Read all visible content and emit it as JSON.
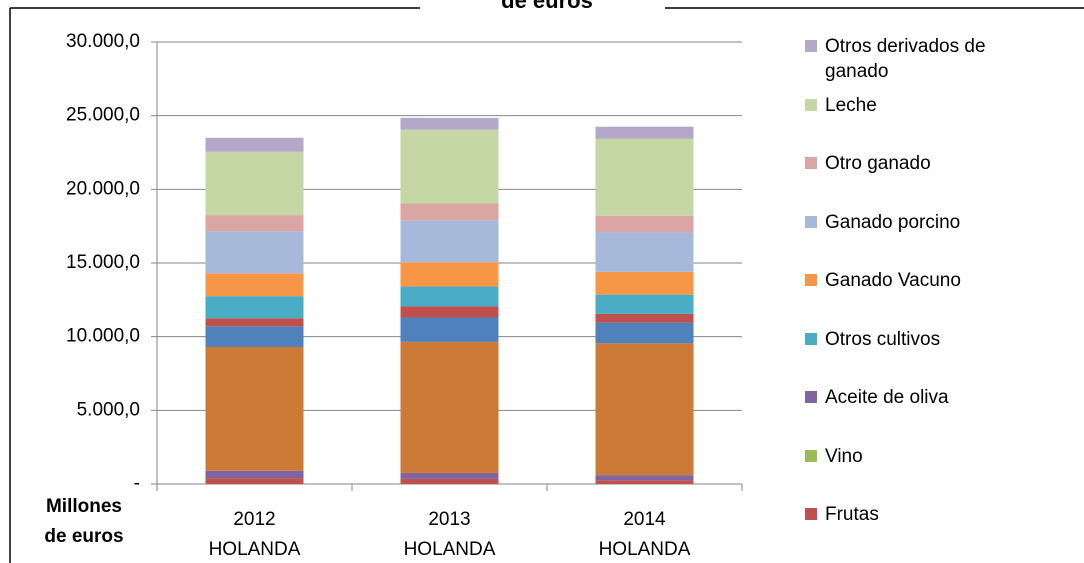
{
  "chart_data": {
    "type": "stacked_bar",
    "title": "de euros",
    "axis_label": [
      "Millones",
      "de euros"
    ],
    "categories": [
      [
        "2012",
        "HOLANDA"
      ],
      [
        "2013",
        "HOLANDA"
      ],
      [
        "2014",
        "HOLANDA"
      ]
    ],
    "series": [
      {
        "name": "Frutas",
        "color": "#c0504d",
        "values": [
          400,
          350,
          250
        ]
      },
      {
        "name": "Vino",
        "color": "#9bbb59",
        "values": [
          0,
          0,
          0
        ]
      },
      {
        "name": "Aceite de oliva",
        "color": "#8064a2",
        "values": [
          500,
          400,
          350
        ]
      },
      {
        "color": "#cc7a36",
        "values": [
          8400,
          8900,
          8950
        ]
      },
      {
        "color": "#4f81bd",
        "values": [
          1400,
          1650,
          1400
        ]
      },
      {
        "color": "#c0504d",
        "values": [
          550,
          750,
          600
        ]
      },
      {
        "name": "Otros cultivos",
        "color": "#4bacc6",
        "values": [
          1500,
          1350,
          1300
        ]
      },
      {
        "name": "Ganado Vacuno",
        "color": "#f79646",
        "values": [
          1550,
          1650,
          1550
        ]
      },
      {
        "name": "Ganado porcino",
        "color": "#a7b9da",
        "values": [
          2850,
          2850,
          2700
        ]
      },
      {
        "name": "Otro ganado",
        "color": "#dba5a4",
        "values": [
          1100,
          1150,
          1100
        ]
      },
      {
        "name": "Leche",
        "color": "#c4d7a4",
        "values": [
          4300,
          5000,
          5250
        ]
      },
      {
        "name": "Otros derivados de ganado",
        "color": "#b5a7c9",
        "values": [
          950,
          800,
          800
        ]
      }
    ],
    "ylim": [
      0,
      30000
    ],
    "yticks": [
      {
        "value": 0,
        "label": "-"
      },
      {
        "value": 5000,
        "label": "5.000,0"
      },
      {
        "value": 10000,
        "label": "10.000,0"
      },
      {
        "value": 15000,
        "label": "15.000,0"
      },
      {
        "value": 20000,
        "label": "20.000,0"
      },
      {
        "value": 25000,
        "label": "25.000,0"
      },
      {
        "value": 30000,
        "label": "30.000,0"
      }
    ],
    "grid": true
  }
}
